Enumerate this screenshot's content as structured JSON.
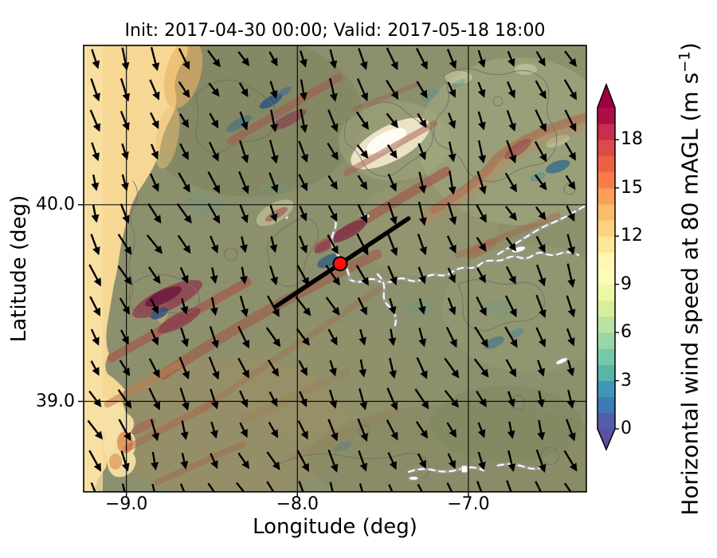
{
  "figure": {
    "title": "Init: 2017-04-30 00:00; Valid: 2017-05-18 18:00",
    "xlabel": "Longitude (deg)",
    "ylabel": "Latitude (deg)",
    "xticks": [
      {
        "label": "−9.0",
        "value": -9.0
      },
      {
        "label": "−8.0",
        "value": -8.0
      },
      {
        "label": "−7.0",
        "value": -7.0
      }
    ],
    "yticks": [
      {
        "label": "40.0",
        "value": 40.0
      },
      {
        "label": "39.0",
        "value": 39.0
      }
    ],
    "axes": {
      "lon_min": -9.25,
      "lon_max": -6.31,
      "lat_min": 38.54,
      "lat_max": 40.81
    }
  },
  "colorbar": {
    "label_prefix": "Horizontal wind speed at 80 mAGL (m s",
    "label_sup": "−1",
    "label_suffix": ")",
    "vmin": 0,
    "vmax": 20,
    "ticks": [
      {
        "label": "18",
        "value": 18
      },
      {
        "label": "15",
        "value": 15
      },
      {
        "label": "12",
        "value": 12
      },
      {
        "label": "9",
        "value": 9
      },
      {
        "label": "6",
        "value": 6
      },
      {
        "label": "3",
        "value": 3
      },
      {
        "label": "0",
        "value": 0
      }
    ],
    "segment_colors_low_to_high": [
      "#535da9",
      "#3d7ab6",
      "#3f97b7",
      "#59b4ab",
      "#77c9a5",
      "#9ad6a4",
      "#bae3a1",
      "#d7ef9b",
      "#ecf8a2",
      "#f9fdb5",
      "#fff7b2",
      "#fee898",
      "#fed380",
      "#fdbb6c",
      "#fb9e5a",
      "#f67d4b",
      "#ec6146",
      "#dd4a4c",
      "#c72f4c",
      "#ab1045"
    ],
    "under_arrow_color": "#5e4fa2",
    "over_arrow_color": "#9e0142"
  },
  "map": {
    "marker": {
      "lon": -7.75,
      "lat": 39.7,
      "fill": "#ff0f0f",
      "edge": "#000000"
    },
    "transect": {
      "lon1": -8.13,
      "lat1": 39.48,
      "lon2": -7.35,
      "lat2": 39.93,
      "color": "#000000"
    },
    "wind_arrows": {
      "color": "#000000",
      "general_direction": "from NNW toward SSE"
    },
    "colors": {
      "ocean_high_wind": "#f6d794",
      "land_base": "#8d906c",
      "ridge_band": "#9c5a48",
      "ridge_core": "#7c2b45",
      "calm_pocket": "#2d5580",
      "river": "#ffffff",
      "contour_line": "#6f6f63",
      "grid_line": "#000000"
    }
  }
}
